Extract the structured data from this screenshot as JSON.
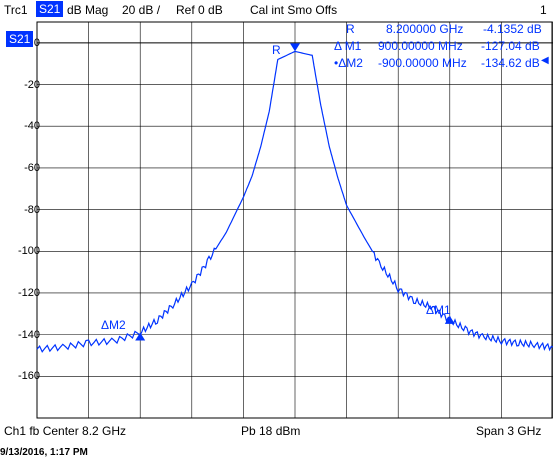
{
  "header": {
    "trace": "Trc1",
    "param": "S21",
    "format": "dB Mag",
    "scale": "20 dB /",
    "ref": "Ref 0 dB",
    "status": "Cal int Smo Offs",
    "channel_num": "1"
  },
  "trace_tag": "S21",
  "marker_table": {
    "rows": [
      {
        "name": "R",
        "freq": "8.200000 GHz",
        "val": "-4.1352 dB"
      },
      {
        "name": "Δ M1",
        "freq": "900.00000 MHz",
        "val": "-127.04 dB"
      },
      {
        "name": "•ΔM2",
        "freq": "-900.00000 MHz",
        "val": "-134.62 dB"
      }
    ]
  },
  "markers": {
    "r_label": "R",
    "m1_label": "ΔM1",
    "m2_label": "ΔM2"
  },
  "footer": {
    "left": "Ch1  fb  Center  8.2 GHz",
    "mid": "Pb   18 dBm",
    "right": "Span  3 GHz"
  },
  "timestamp": "9/13/2016, 1:17 PM",
  "colors": {
    "trace": "#0033ff",
    "grid": "#000000",
    "accent": "#0033ff"
  },
  "chart_data": {
    "type": "line",
    "xlabel": "",
    "ylabel": "",
    "ylim": [
      -180,
      10
    ],
    "xlim_ghz": [
      6.7,
      9.7
    ],
    "y_ticks": [
      "0",
      "-20",
      "-40",
      "-60",
      "-80",
      "-100",
      "-120",
      "-140",
      "-160"
    ],
    "y_tick_values": [
      0,
      -20,
      -40,
      -60,
      -80,
      -100,
      -120,
      -140,
      -160
    ],
    "series": [
      {
        "x": [
          6.7,
          6.85,
          7.0,
          7.15,
          7.3,
          7.4,
          7.5,
          7.6,
          7.7,
          7.8,
          7.9,
          7.95,
          8.0,
          8.05,
          8.1,
          8.2,
          8.3,
          8.35,
          8.4,
          8.45,
          8.5,
          8.6,
          8.7,
          8.8,
          8.9,
          9.0,
          9.1,
          9.2,
          9.3,
          9.4,
          9.5,
          9.6,
          9.7
        ],
        "values": [
          -147,
          -146,
          -144,
          -143,
          -139,
          -133,
          -125,
          -116,
          -104,
          -91,
          -74,
          -64,
          -50,
          -33,
          -8,
          -4.1,
          -6,
          -30,
          -50,
          -65,
          -78,
          -93,
          -107,
          -118,
          -124,
          -127,
          -133,
          -138,
          -141,
          -143,
          -144,
          -145,
          -146
        ]
      }
    ]
  }
}
